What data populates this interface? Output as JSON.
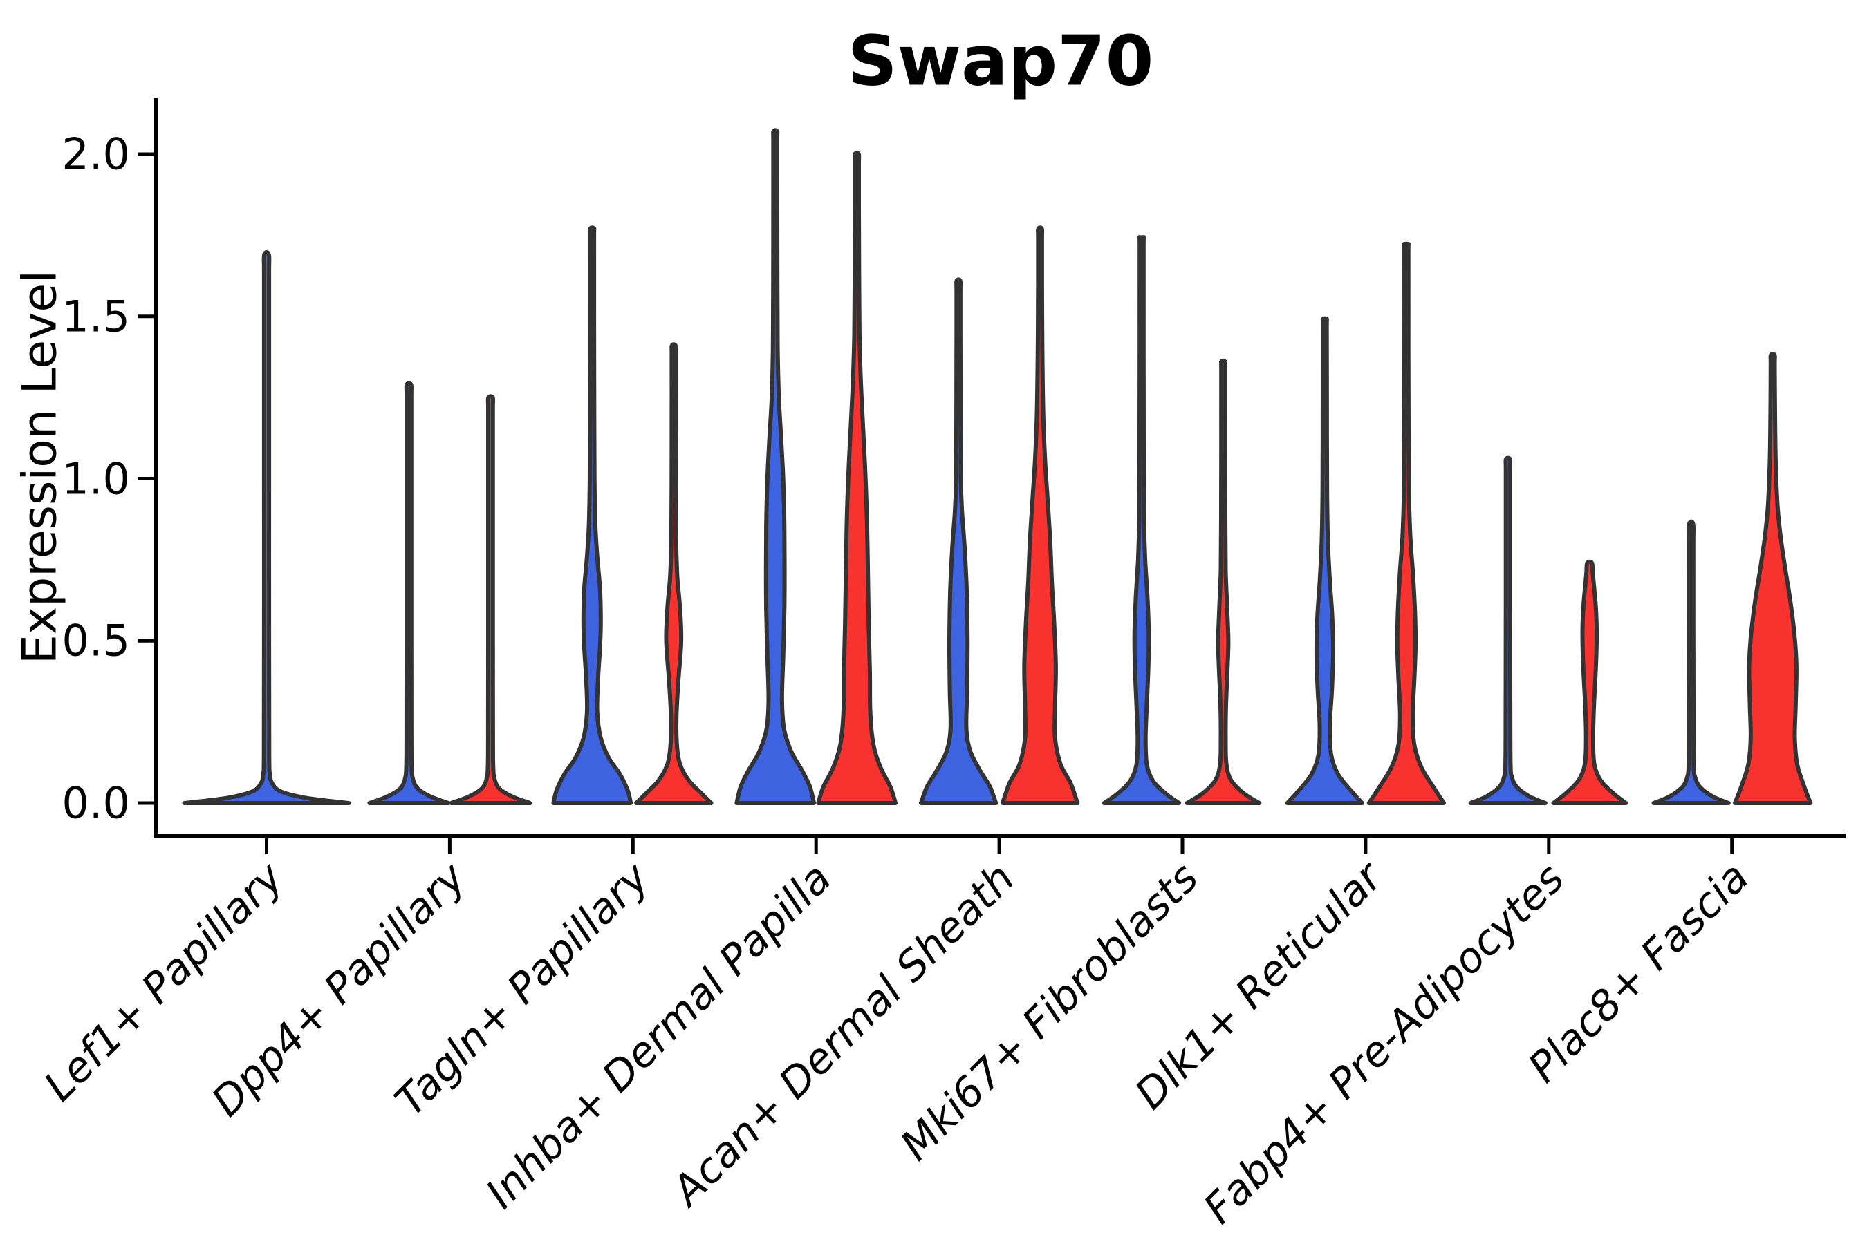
{
  "chart_data": {
    "type": "violin",
    "title": "Swap70",
    "ylabel": "Expression Level",
    "xlabel": "",
    "ylim": [
      -0.1,
      2.17
    ],
    "grid": false,
    "legend": "none",
    "yticks": [
      {
        "label": "0.0",
        "value": 0.0
      },
      {
        "label": "0.5",
        "value": 0.5
      },
      {
        "label": "1.0",
        "value": 1.0
      },
      {
        "label": "1.5",
        "value": 1.5
      },
      {
        "label": "2.0",
        "value": 2.0
      }
    ],
    "categories": [
      "Lef1+ Papillary",
      "Dpp4+ Papillary",
      "Tagln+ Papillary",
      "Inhba+ Dermal Papilla",
      "Acan+ Dermal Sheath",
      "Mki67+ Fibroblasts",
      "Dlk1+ Reticular",
      "Fabp4+ Pre-Adipocytes",
      "Plac8+ Fascia"
    ],
    "colors": {
      "blue": "#3D63E0",
      "red": "#F8322F",
      "outline": "#333333",
      "axis": "#000000"
    },
    "violins": [
      {
        "cat": 0,
        "side": "center",
        "color": "blue",
        "hw": 119,
        "max": 1.69,
        "profile": [
          [
            0,
            1
          ],
          [
            0.015,
            0.5
          ],
          [
            0.035,
            0.18
          ],
          [
            0.06,
            0.07
          ],
          [
            0.09,
            0.04
          ],
          [
            0.15,
            0.032
          ],
          [
            0.5,
            0.03
          ],
          [
            1.0,
            0.03
          ],
          [
            1.4,
            0.03
          ],
          [
            1.63,
            0.03
          ],
          [
            1.69,
            0.028
          ]
        ]
      },
      {
        "cat": 1,
        "side": "left",
        "color": "blue",
        "hw": 57,
        "max": 1.29,
        "profile": [
          [
            0,
            1
          ],
          [
            0.02,
            0.55
          ],
          [
            0.045,
            0.22
          ],
          [
            0.075,
            0.1
          ],
          [
            0.11,
            0.068
          ],
          [
            0.2,
            0.062
          ],
          [
            0.5,
            0.06
          ],
          [
            0.9,
            0.06
          ],
          [
            1.15,
            0.06
          ],
          [
            1.26,
            0.06
          ],
          [
            1.29,
            0.055
          ]
        ]
      },
      {
        "cat": 1,
        "side": "right",
        "color": "red",
        "hw": 57,
        "max": 1.25,
        "profile": [
          [
            0,
            1
          ],
          [
            0.02,
            0.55
          ],
          [
            0.045,
            0.22
          ],
          [
            0.075,
            0.1
          ],
          [
            0.11,
            0.068
          ],
          [
            0.2,
            0.062
          ],
          [
            0.5,
            0.06
          ],
          [
            0.85,
            0.06
          ],
          [
            1.1,
            0.06
          ],
          [
            1.22,
            0.06
          ],
          [
            1.25,
            0.055
          ]
        ]
      },
      {
        "cat": 2,
        "side": "left",
        "color": "blue",
        "hw": 57,
        "max": 1.77,
        "profile": [
          [
            0,
            0.98
          ],
          [
            0.04,
            0.9
          ],
          [
            0.09,
            0.7
          ],
          [
            0.14,
            0.42
          ],
          [
            0.2,
            0.22
          ],
          [
            0.28,
            0.13
          ],
          [
            0.38,
            0.15
          ],
          [
            0.48,
            0.2
          ],
          [
            0.56,
            0.22
          ],
          [
            0.66,
            0.2
          ],
          [
            0.76,
            0.13
          ],
          [
            0.86,
            0.08
          ],
          [
            1.0,
            0.06
          ],
          [
            1.25,
            0.052
          ],
          [
            1.5,
            0.05
          ],
          [
            1.74,
            0.05
          ],
          [
            1.77,
            0.045
          ]
        ]
      },
      {
        "cat": 2,
        "side": "right",
        "color": "red",
        "hw": 57,
        "max": 1.41,
        "profile": [
          [
            0,
            0.95
          ],
          [
            0.03,
            0.7
          ],
          [
            0.07,
            0.38
          ],
          [
            0.12,
            0.16
          ],
          [
            0.18,
            0.08
          ],
          [
            0.27,
            0.07
          ],
          [
            0.38,
            0.12
          ],
          [
            0.5,
            0.19
          ],
          [
            0.6,
            0.16
          ],
          [
            0.7,
            0.09
          ],
          [
            0.82,
            0.06
          ],
          [
            1.0,
            0.052
          ],
          [
            1.2,
            0.05
          ],
          [
            1.38,
            0.05
          ],
          [
            1.41,
            0.045
          ]
        ]
      },
      {
        "cat": 3,
        "side": "left",
        "color": "blue",
        "hw": 57,
        "max": 2.07,
        "profile": [
          [
            0,
            0.98
          ],
          [
            0.05,
            0.88
          ],
          [
            0.1,
            0.68
          ],
          [
            0.16,
            0.4
          ],
          [
            0.23,
            0.22
          ],
          [
            0.32,
            0.17
          ],
          [
            0.45,
            0.2
          ],
          [
            0.6,
            0.23
          ],
          [
            0.72,
            0.235
          ],
          [
            0.85,
            0.23
          ],
          [
            1.0,
            0.2
          ],
          [
            1.12,
            0.15
          ],
          [
            1.25,
            0.09
          ],
          [
            1.4,
            0.06
          ],
          [
            1.6,
            0.053
          ],
          [
            1.85,
            0.05
          ],
          [
            2.04,
            0.05
          ],
          [
            2.07,
            0.045
          ]
        ]
      },
      {
        "cat": 3,
        "side": "right",
        "color": "red",
        "hw": 57,
        "max": 2.0,
        "profile": [
          [
            0,
            0.98
          ],
          [
            0.05,
            0.85
          ],
          [
            0.11,
            0.6
          ],
          [
            0.18,
            0.42
          ],
          [
            0.28,
            0.34
          ],
          [
            0.4,
            0.33
          ],
          [
            0.55,
            0.3
          ],
          [
            0.7,
            0.28
          ],
          [
            0.85,
            0.26
          ],
          [
            1.0,
            0.22
          ],
          [
            1.15,
            0.16
          ],
          [
            1.3,
            0.1
          ],
          [
            1.45,
            0.065
          ],
          [
            1.65,
            0.055
          ],
          [
            1.85,
            0.05
          ],
          [
            1.97,
            0.05
          ],
          [
            2.0,
            0.045
          ]
        ]
      },
      {
        "cat": 4,
        "side": "left",
        "color": "blue",
        "hw": 57,
        "max": 1.61,
        "profile": [
          [
            0,
            0.95
          ],
          [
            0.05,
            0.8
          ],
          [
            0.1,
            0.55
          ],
          [
            0.16,
            0.3
          ],
          [
            0.23,
            0.2
          ],
          [
            0.35,
            0.22
          ],
          [
            0.5,
            0.23
          ],
          [
            0.65,
            0.21
          ],
          [
            0.78,
            0.16
          ],
          [
            0.9,
            0.09
          ],
          [
            1.0,
            0.06
          ],
          [
            1.2,
            0.052
          ],
          [
            1.45,
            0.05
          ],
          [
            1.58,
            0.05
          ],
          [
            1.61,
            0.045
          ]
        ]
      },
      {
        "cat": 4,
        "side": "right",
        "color": "red",
        "hw": 57,
        "max": 1.77,
        "profile": [
          [
            0,
            0.95
          ],
          [
            0.06,
            0.78
          ],
          [
            0.12,
            0.52
          ],
          [
            0.2,
            0.38
          ],
          [
            0.3,
            0.38
          ],
          [
            0.42,
            0.4
          ],
          [
            0.55,
            0.36
          ],
          [
            0.68,
            0.3
          ],
          [
            0.8,
            0.26
          ],
          [
            0.92,
            0.2
          ],
          [
            1.05,
            0.13
          ],
          [
            1.2,
            0.08
          ],
          [
            1.4,
            0.058
          ],
          [
            1.6,
            0.05
          ],
          [
            1.74,
            0.05
          ],
          [
            1.77,
            0.045
          ]
        ]
      },
      {
        "cat": 5,
        "side": "left",
        "color": "blue",
        "hw": 57,
        "max": 1.74,
        "profile": [
          [
            0,
            0.95
          ],
          [
            0.03,
            0.6
          ],
          [
            0.07,
            0.28
          ],
          [
            0.12,
            0.13
          ],
          [
            0.2,
            0.1
          ],
          [
            0.3,
            0.13
          ],
          [
            0.42,
            0.17
          ],
          [
            0.52,
            0.18
          ],
          [
            0.63,
            0.15
          ],
          [
            0.75,
            0.09
          ],
          [
            0.88,
            0.06
          ],
          [
            1.1,
            0.052
          ],
          [
            1.4,
            0.05
          ],
          [
            1.71,
            0.05
          ],
          [
            1.74,
            0.045
          ]
        ]
      },
      {
        "cat": 5,
        "side": "right",
        "color": "red",
        "hw": 57,
        "max": 1.36,
        "profile": [
          [
            0,
            0.92
          ],
          [
            0.03,
            0.52
          ],
          [
            0.07,
            0.2
          ],
          [
            0.12,
            0.08
          ],
          [
            0.2,
            0.062
          ],
          [
            0.3,
            0.07
          ],
          [
            0.42,
            0.11
          ],
          [
            0.5,
            0.13
          ],
          [
            0.6,
            0.1
          ],
          [
            0.72,
            0.062
          ],
          [
            0.9,
            0.052
          ],
          [
            1.1,
            0.05
          ],
          [
            1.33,
            0.05
          ],
          [
            1.36,
            0.045
          ]
        ]
      },
      {
        "cat": 6,
        "side": "left",
        "color": "blue",
        "hw": 57,
        "max": 1.49,
        "profile": [
          [
            0,
            0.95
          ],
          [
            0.04,
            0.65
          ],
          [
            0.09,
            0.33
          ],
          [
            0.15,
            0.16
          ],
          [
            0.24,
            0.13
          ],
          [
            0.35,
            0.18
          ],
          [
            0.46,
            0.21
          ],
          [
            0.57,
            0.19
          ],
          [
            0.68,
            0.13
          ],
          [
            0.8,
            0.08
          ],
          [
            0.95,
            0.058
          ],
          [
            1.2,
            0.052
          ],
          [
            1.46,
            0.05
          ],
          [
            1.49,
            0.045
          ]
        ]
      },
      {
        "cat": 6,
        "side": "right",
        "color": "red",
        "hw": 57,
        "max": 1.72,
        "profile": [
          [
            0,
            0.95
          ],
          [
            0.05,
            0.68
          ],
          [
            0.11,
            0.38
          ],
          [
            0.18,
            0.2
          ],
          [
            0.27,
            0.16
          ],
          [
            0.38,
            0.2
          ],
          [
            0.48,
            0.23
          ],
          [
            0.58,
            0.22
          ],
          [
            0.7,
            0.17
          ],
          [
            0.82,
            0.1
          ],
          [
            0.95,
            0.065
          ],
          [
            1.15,
            0.055
          ],
          [
            1.4,
            0.05
          ],
          [
            1.69,
            0.05
          ],
          [
            1.72,
            0.045
          ]
        ]
      },
      {
        "cat": 7,
        "side": "left",
        "color": "blue",
        "hw": 57,
        "max": 1.06,
        "profile": [
          [
            0,
            0.95
          ],
          [
            0.02,
            0.55
          ],
          [
            0.05,
            0.22
          ],
          [
            0.08,
            0.1
          ],
          [
            0.12,
            0.065
          ],
          [
            0.3,
            0.058
          ],
          [
            0.6,
            0.055
          ],
          [
            0.9,
            0.055
          ],
          [
            1.03,
            0.055
          ],
          [
            1.06,
            0.05
          ]
        ]
      },
      {
        "cat": 7,
        "side": "right",
        "color": "red",
        "hw": 57,
        "max": 0.74,
        "profile": [
          [
            0,
            0.92
          ],
          [
            0.03,
            0.6
          ],
          [
            0.07,
            0.28
          ],
          [
            0.12,
            0.12
          ],
          [
            0.2,
            0.09
          ],
          [
            0.3,
            0.11
          ],
          [
            0.42,
            0.16
          ],
          [
            0.52,
            0.18
          ],
          [
            0.6,
            0.16
          ],
          [
            0.67,
            0.11
          ],
          [
            0.71,
            0.08
          ],
          [
            0.74,
            0.06
          ]
        ]
      },
      {
        "cat": 8,
        "side": "left",
        "color": "blue",
        "hw": 57,
        "max": 0.86,
        "profile": [
          [
            0,
            0.95
          ],
          [
            0.02,
            0.55
          ],
          [
            0.05,
            0.22
          ],
          [
            0.08,
            0.1
          ],
          [
            0.12,
            0.065
          ],
          [
            0.3,
            0.058
          ],
          [
            0.55,
            0.055
          ],
          [
            0.8,
            0.055
          ],
          [
            0.86,
            0.05
          ]
        ]
      },
      {
        "cat": 8,
        "side": "right",
        "color": "red",
        "hw": 57,
        "max": 1.38,
        "profile": [
          [
            0,
            0.96
          ],
          [
            0.05,
            0.8
          ],
          [
            0.12,
            0.62
          ],
          [
            0.2,
            0.56
          ],
          [
            0.3,
            0.58
          ],
          [
            0.42,
            0.6
          ],
          [
            0.52,
            0.55
          ],
          [
            0.62,
            0.45
          ],
          [
            0.72,
            0.32
          ],
          [
            0.82,
            0.2
          ],
          [
            0.92,
            0.12
          ],
          [
            1.05,
            0.075
          ],
          [
            1.2,
            0.058
          ],
          [
            1.35,
            0.05
          ],
          [
            1.38,
            0.048
          ]
        ]
      }
    ]
  }
}
